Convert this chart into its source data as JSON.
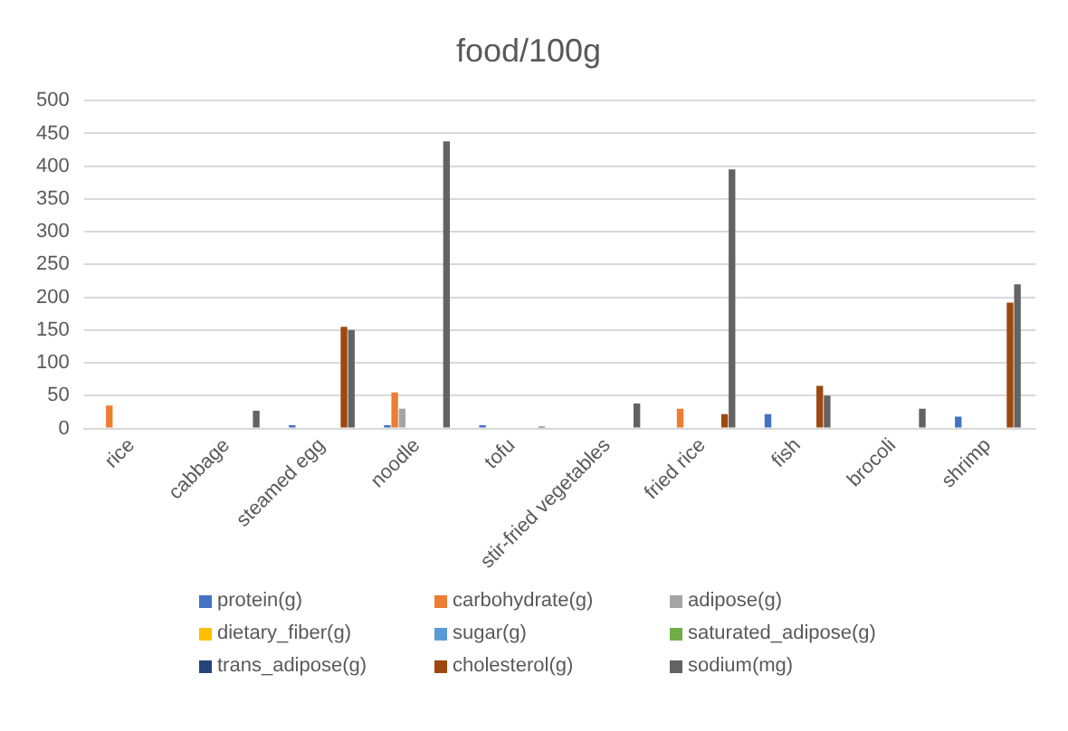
{
  "chart_data": {
    "type": "bar",
    "title": "food/100g",
    "categories": [
      "rice",
      "cabbage",
      "steamed egg",
      "noodle",
      "tofu",
      "stir-fried vegetables",
      "fried rice",
      "fish",
      "brocoli",
      "shrimp"
    ],
    "series": [
      {
        "name": "protein(g)",
        "color": "#4472c4",
        "values": [
          0,
          0,
          5,
          5,
          5,
          0,
          0,
          22,
          0,
          18
        ]
      },
      {
        "name": "carbohydrate(g)",
        "color": "#ed7d31",
        "values": [
          35,
          0,
          0,
          55,
          0,
          0,
          30,
          0,
          0,
          0
        ]
      },
      {
        "name": "adipose(g)",
        "color": "#a5a5a5",
        "values": [
          0,
          0,
          0,
          30,
          0,
          0,
          0,
          0,
          0,
          0
        ]
      },
      {
        "name": "dietary_fiber(g)",
        "color": "#ffc000",
        "values": [
          0,
          0,
          0,
          0,
          0,
          0,
          0,
          0,
          0,
          0
        ]
      },
      {
        "name": "sugar(g)",
        "color": "#5b9bd5",
        "values": [
          0,
          0,
          0,
          0,
          0,
          0,
          0,
          0,
          0,
          0
        ]
      },
      {
        "name": "saturated_adipose(g)",
        "color": "#70ad47",
        "values": [
          0,
          0,
          0,
          0,
          0,
          0,
          0,
          0,
          0,
          0
        ]
      },
      {
        "name": "trans_adipose(g)",
        "color": "#264478",
        "values": [
          0,
          0,
          0,
          0,
          0,
          0,
          0,
          0,
          0,
          0
        ]
      },
      {
        "name": "cholesterol(g)",
        "color": "#9e480e",
        "values": [
          0,
          0,
          155,
          0,
          0,
          0,
          22,
          65,
          0,
          192
        ]
      },
      {
        "name": "sodium(mg)",
        "color": "#636363",
        "values": [
          0,
          27,
          150,
          438,
          3,
          38,
          395,
          50,
          30,
          220
        ]
      }
    ],
    "ylim": [
      0,
      500
    ],
    "yticks": [
      0,
      50,
      100,
      150,
      200,
      250,
      300,
      350,
      400,
      450,
      500
    ],
    "grid": "y",
    "legend": "bottom"
  }
}
